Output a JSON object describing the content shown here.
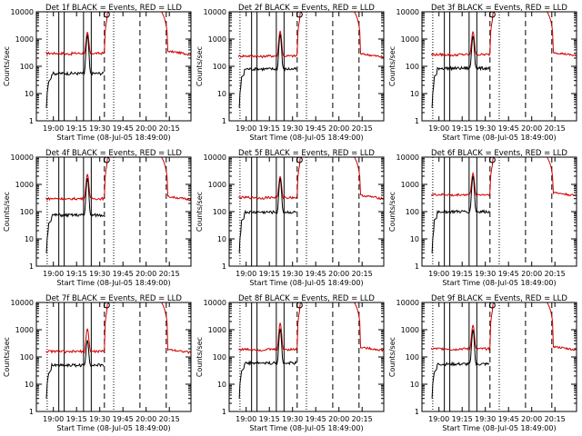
{
  "chart_data": [
    {
      "type": "line",
      "title": "Det 1f BLACK = Events, RED = LLD",
      "ylabel": "Counts/sec",
      "xlabel": "Start Time (08-Jul-05 18:49:00)",
      "xticks": [
        "19:00",
        "19:15",
        "19:30",
        "19:45",
        "20:00",
        "20:15"
      ],
      "yticks": [
        "1",
        "10",
        "100",
        "1000",
        "10000"
      ],
      "ylim": [
        1,
        10000
      ],
      "scale": "log",
      "red_base": 300,
      "black_base": 55,
      "red_peak": 1800,
      "black_peak": 1400,
      "series": [
        {
          "name": "BLACK = Events",
          "color": "#000000"
        },
        {
          "name": "RED = LLD",
          "color": "#cc0000"
        }
      ]
    },
    {
      "type": "line",
      "title": "Det 2f BLACK = Events, RED = LLD",
      "ylabel": "Counts/sec",
      "xlabel": "Start Time (08-Jul-05 18:49:00)",
      "xticks": [
        "19:00",
        "19:15",
        "19:30",
        "19:45",
        "20:00",
        "20:15"
      ],
      "yticks": [
        "1",
        "10",
        "100",
        "1000",
        "10000"
      ],
      "ylim": [
        1,
        10000
      ],
      "scale": "log",
      "red_base": 240,
      "black_base": 80,
      "red_peak": 2000,
      "black_peak": 1500,
      "series": [
        {
          "name": "BLACK = Events",
          "color": "#000000"
        },
        {
          "name": "RED = LLD",
          "color": "#cc0000"
        }
      ]
    },
    {
      "type": "line",
      "title": "Det 3f BLACK = Events, RED = LLD",
      "ylabel": "Counts/sec",
      "xlabel": "Start Time (08-Jul-05 18:49:00)",
      "xticks": [
        "19:00",
        "19:15",
        "19:30",
        "19:45",
        "20:00",
        "20:15"
      ],
      "yticks": [
        "1",
        "10",
        "100",
        "1000",
        "10000"
      ],
      "ylim": [
        1,
        10000
      ],
      "scale": "log",
      "red_base": 270,
      "black_base": 85,
      "red_peak": 1900,
      "black_peak": 1300,
      "series": [
        {
          "name": "BLACK = Events",
          "color": "#000000"
        },
        {
          "name": "RED = LLD",
          "color": "#cc0000"
        }
      ]
    },
    {
      "type": "line",
      "title": "Det 4f BLACK = Events, RED = LLD",
      "ylabel": "Counts/sec",
      "xlabel": "Start Time (08-Jul-05 18:49:00)",
      "xticks": [
        "19:00",
        "19:15",
        "19:30",
        "19:45",
        "20:00",
        "20:15"
      ],
      "yticks": [
        "1",
        "10",
        "100",
        "1000",
        "10000"
      ],
      "ylim": [
        1,
        10000
      ],
      "scale": "log",
      "red_base": 300,
      "black_base": 75,
      "red_peak": 2400,
      "black_peak": 1700,
      "series": [
        {
          "name": "BLACK = Events",
          "color": "#000000"
        },
        {
          "name": "RED = LLD",
          "color": "#cc0000"
        }
      ]
    },
    {
      "type": "line",
      "title": "Det 5f BLACK = Events, RED = LLD",
      "ylabel": "Counts/sec",
      "xlabel": "Start Time (08-Jul-05 18:49:00)",
      "xticks": [
        "19:00",
        "19:15",
        "19:30",
        "19:45",
        "20:00",
        "20:15"
      ],
      "yticks": [
        "1",
        "10",
        "100",
        "1000",
        "10000"
      ],
      "ylim": [
        1,
        10000
      ],
      "scale": "log",
      "red_base": 330,
      "black_base": 95,
      "red_peak": 2000,
      "black_peak": 1700,
      "series": [
        {
          "name": "BLACK = Events",
          "color": "#000000"
        },
        {
          "name": "RED = LLD",
          "color": "#cc0000"
        }
      ]
    },
    {
      "type": "line",
      "title": "Det 6f BLACK = Events, RED = LLD",
      "ylabel": "Counts/sec",
      "xlabel": "Start Time (08-Jul-05 18:49:00)",
      "xticks": [
        "19:00",
        "19:15",
        "19:30",
        "19:45",
        "20:00",
        "20:15"
      ],
      "yticks": [
        "1",
        "10",
        "100",
        "1000",
        "10000"
      ],
      "ylim": [
        1,
        10000
      ],
      "scale": "log",
      "red_base": 420,
      "black_base": 100,
      "red_peak": 2600,
      "black_peak": 2000,
      "series": [
        {
          "name": "BLACK = Events",
          "color": "#000000"
        },
        {
          "name": "RED = LLD",
          "color": "#cc0000"
        }
      ]
    },
    {
      "type": "line",
      "title": "Det 7f BLACK = Events, RED = LLD",
      "ylabel": "Counts/sec",
      "xlabel": "Start Time (08-Jul-05 18:49:00)",
      "xticks": [
        "19:00",
        "19:15",
        "19:30",
        "19:45",
        "20:00",
        "20:15"
      ],
      "yticks": [
        "1",
        "10",
        "100",
        "1000",
        "10000"
      ],
      "ylim": [
        1,
        10000
      ],
      "scale": "log",
      "red_base": 160,
      "black_base": 50,
      "red_peak": 1100,
      "black_peak": 420,
      "series": [
        {
          "name": "BLACK = Events",
          "color": "#000000"
        },
        {
          "name": "RED = LLD",
          "color": "#cc0000"
        }
      ]
    },
    {
      "type": "line",
      "title": "Det 8f BLACK = Events, RED = LLD",
      "ylabel": "Counts/sec",
      "xlabel": "Start Time (08-Jul-05 18:49:00)",
      "xticks": [
        "19:00",
        "19:15",
        "19:30",
        "19:45",
        "20:00",
        "20:15"
      ],
      "yticks": [
        "1",
        "10",
        "100",
        "1000",
        "10000"
      ],
      "ylim": [
        1,
        10000
      ],
      "scale": "log",
      "red_base": 190,
      "black_base": 60,
      "red_peak": 1800,
      "black_peak": 1100,
      "series": [
        {
          "name": "BLACK = Events",
          "color": "#000000"
        },
        {
          "name": "RED = LLD",
          "color": "#cc0000"
        }
      ]
    },
    {
      "type": "line",
      "title": "Det 9f BLACK = Events, RED = LLD",
      "ylabel": "Counts/sec",
      "xlabel": "Start Time (08-Jul-05 18:49:00)",
      "xticks": [
        "19:00",
        "19:15",
        "19:30",
        "19:45",
        "20:00",
        "20:15"
      ],
      "yticks": [
        "1",
        "10",
        "100",
        "1000",
        "10000"
      ],
      "ylim": [
        1,
        10000
      ],
      "scale": "log",
      "red_base": 200,
      "black_base": 55,
      "red_peak": 1500,
      "black_peak": 1000,
      "series": [
        {
          "name": "BLACK = Events",
          "color": "#000000"
        },
        {
          "name": "RED = LLD",
          "color": "#cc0000"
        }
      ]
    }
  ]
}
